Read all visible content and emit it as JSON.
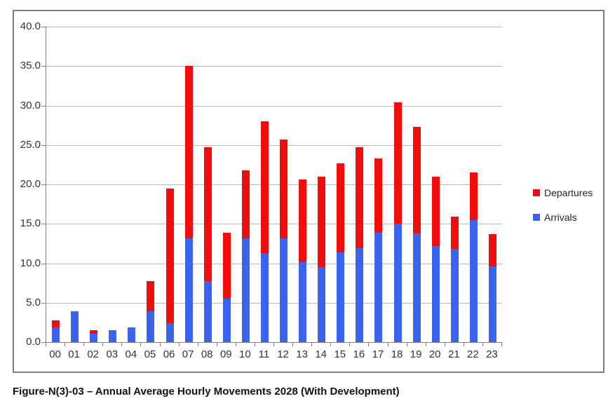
{
  "figure": {
    "caption": "Figure-N(3)-03 – Annual Average Hourly Movements 2028 (With Development)"
  },
  "legend": {
    "departures_label": "Departures",
    "arrivals_label": "Arrivals"
  },
  "colors": {
    "departures": "#f20d0d",
    "arrivals": "#3a64f0",
    "gridline": "#b9b9b9",
    "axis": "#808080",
    "frame_border": "#7f7f7f",
    "label_text": "#333333"
  },
  "chart_data": {
    "type": "bar",
    "stacked": true,
    "title": "",
    "xlabel": "",
    "ylabel": "",
    "ylim": [
      0,
      40
    ],
    "ytick_step": 5,
    "ytick_labels": [
      "40.0",
      "35.0",
      "30.0",
      "25.0",
      "20.0",
      "15.0",
      "10.0",
      "5.0",
      "0.0"
    ],
    "grid": true,
    "legend_position": "right",
    "categories": [
      "00",
      "01",
      "02",
      "03",
      "04",
      "05",
      "06",
      "07",
      "08",
      "09",
      "10",
      "11",
      "12",
      "13",
      "14",
      "15",
      "16",
      "17",
      "18",
      "19",
      "20",
      "21",
      "22",
      "23"
    ],
    "series": [
      {
        "name": "Arrivals",
        "color": "#3a64f0",
        "values": [
          1.9,
          3.9,
          1.1,
          1.5,
          1.9,
          3.9,
          2.4,
          13.2,
          7.7,
          5.5,
          13.2,
          11.3,
          13.2,
          10.1,
          9.5,
          11.4,
          11.9,
          13.9,
          15.0,
          13.8,
          12.2,
          11.8,
          15.5,
          9.6
        ]
      },
      {
        "name": "Departures",
        "color": "#f20d0d",
        "values": [
          0.9,
          0.0,
          0.4,
          0.0,
          0.0,
          3.8,
          17.1,
          21.8,
          17.0,
          8.4,
          8.6,
          16.7,
          12.5,
          10.5,
          11.5,
          11.3,
          12.8,
          9.4,
          15.4,
          13.5,
          8.8,
          4.1,
          6.0,
          4.1
        ]
      }
    ]
  }
}
